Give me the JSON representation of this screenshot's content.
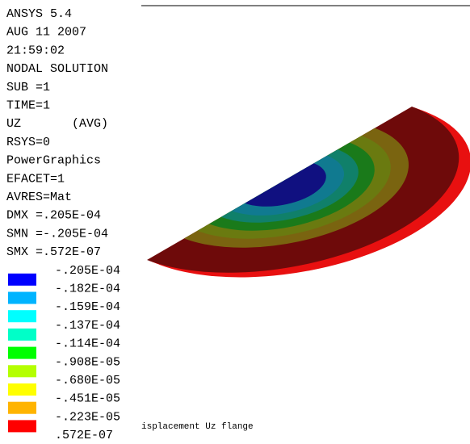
{
  "header_lines": [
    "ANSYS 5.4",
    "AUG 11 2007",
    "21:59:02",
    "NODAL SOLUTION",
    "SUB =1",
    "TIME=1",
    "UZ       (AVG)",
    "RSYS=0",
    "PowerGraphics",
    "EFACET=1",
    "AVRES=Mat",
    "DMX =.205E-04",
    "SMN =-.205E-04",
    "SMX =.572E-07"
  ],
  "legend": {
    "colors": [
      "#0000ff",
      "#00b4ff",
      "#00ffff",
      "#00ffc8",
      "#00ff00",
      "#b4ff00",
      "#ffff00",
      "#ffb400",
      "#ff0000"
    ],
    "labels": [
      "-.205E-04",
      "-.182E-04",
      "-.159E-04",
      "-.137E-04",
      "-.114E-04",
      "-.908E-05",
      "-.680E-05",
      "-.451E-05",
      "-.223E-05",
      ".572E-07"
    ]
  },
  "caption": "isplacement Uz flange"
}
